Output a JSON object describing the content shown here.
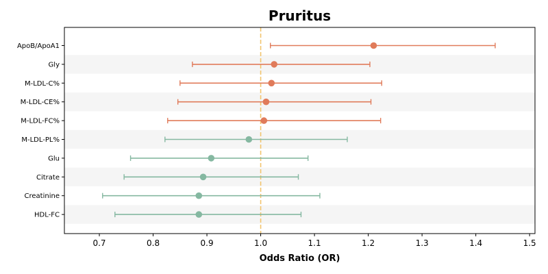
{
  "chart_data": {
    "type": "forest",
    "title": "Pruritus",
    "xlabel": "Odds Ratio (OR)",
    "xlim": [
      0.635,
      1.51
    ],
    "xticks": [
      0.7,
      0.8,
      0.9,
      1.0,
      1.1,
      1.2,
      1.3,
      1.4,
      1.5
    ],
    "xtick_labels": [
      "0.7",
      "0.8",
      "0.9",
      "1.0",
      "1.1",
      "1.2",
      "1.3",
      "1.4",
      "1.5"
    ],
    "reference_line": 1.0,
    "colors": {
      "risk": "#e07b5a",
      "protective": "#85b8a1",
      "reference": "#f2c46d",
      "band": "#f5f5f5",
      "frame": "#000000"
    },
    "rows": [
      {
        "label": "ApoB/ApoA1",
        "or": 1.21,
        "lower": 1.018,
        "upper": 1.436,
        "group": "risk"
      },
      {
        "label": "Gly",
        "or": 1.025,
        "lower": 0.873,
        "upper": 1.203,
        "group": "risk"
      },
      {
        "label": "M-LDL-C%",
        "or": 1.02,
        "lower": 0.85,
        "upper": 1.225,
        "group": "risk"
      },
      {
        "label": "M-LDL-CE%",
        "or": 1.01,
        "lower": 0.846,
        "upper": 1.205,
        "group": "risk"
      },
      {
        "label": "M-LDL-FC%",
        "or": 1.006,
        "lower": 0.827,
        "upper": 1.223,
        "group": "risk"
      },
      {
        "label": "M-LDL-PL%",
        "or": 0.978,
        "lower": 0.822,
        "upper": 1.161,
        "group": "protective"
      },
      {
        "label": "Glu",
        "or": 0.908,
        "lower": 0.758,
        "upper": 1.088,
        "group": "protective"
      },
      {
        "label": "Citrate",
        "or": 0.893,
        "lower": 0.746,
        "upper": 1.07,
        "group": "protective"
      },
      {
        "label": "Creatinine",
        "or": 0.885,
        "lower": 0.706,
        "upper": 1.11,
        "group": "protective"
      },
      {
        "label": "HDL-FC",
        "or": 0.885,
        "lower": 0.729,
        "upper": 1.075,
        "group": "protective"
      }
    ]
  }
}
